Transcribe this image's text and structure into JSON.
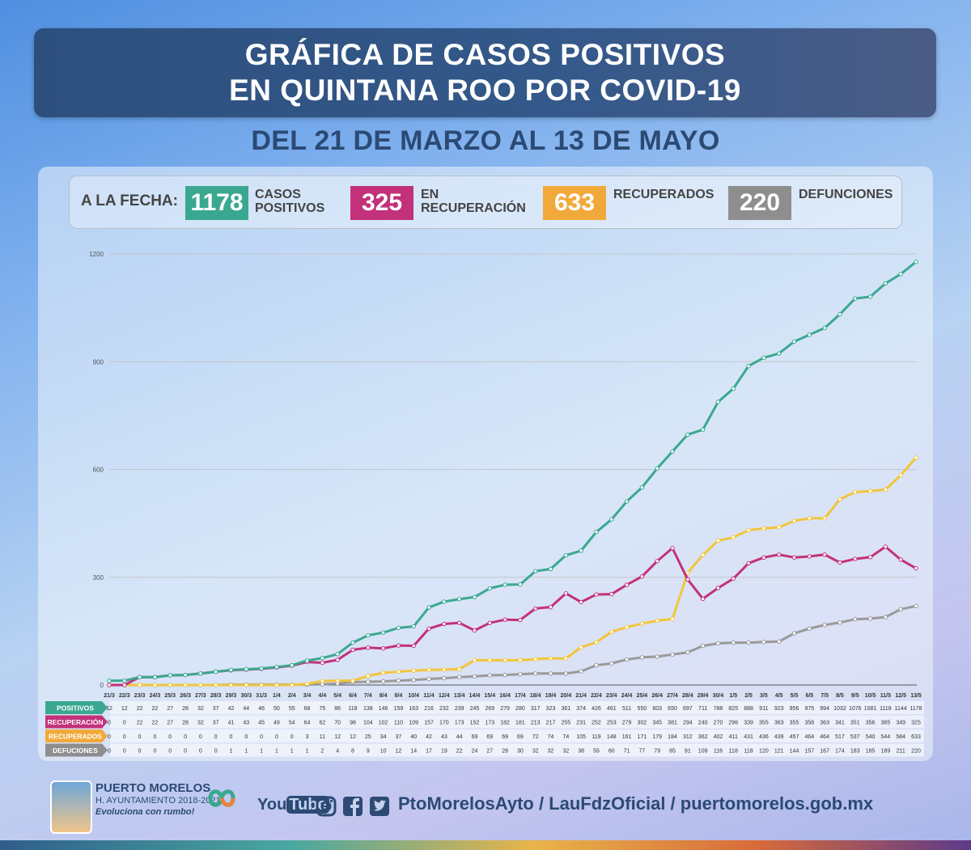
{
  "header": {
    "title_line1": "GRÁFICA DE CASOS POSITIVOS",
    "title_line2": "EN QUINTANA ROO POR COVID-19",
    "subtitle": "DEL 21 DE MARZO AL 13 DE MAYO"
  },
  "summary": {
    "label": "A LA FECHA:",
    "positivos": {
      "value": "1178",
      "label_line1": "CASOS",
      "label_line2": "POSITIVOS",
      "color": "#3aa890"
    },
    "recuperacion": {
      "value": "325",
      "label_line1": "EN",
      "label_line2": "RECUPERACIÓN",
      "color": "#c2317a"
    },
    "recuperados": {
      "value": "633",
      "label_line1": "RECUPERADOS",
      "color": "#f2a93b"
    },
    "defunciones": {
      "value": "220",
      "label_line1": "DEFUNCIONES",
      "color": "#8e8e8e"
    }
  },
  "chart_data": {
    "type": "line",
    "ylim": [
      0,
      1200
    ],
    "yticks": [
      "0",
      "300",
      "600",
      "900",
      "1200"
    ],
    "grid": true,
    "x": [
      "21/3",
      "22/3",
      "23/3",
      "24/3",
      "25/3",
      "26/3",
      "27/3",
      "28/3",
      "29/3",
      "30/3",
      "31/3",
      "1/4",
      "2/4",
      "3/4",
      "4/4",
      "5/4",
      "6/4",
      "7/4",
      "8/4",
      "9/4",
      "10/4",
      "11/4",
      "12/4",
      "13/4",
      "14/4",
      "15/4",
      "16/4",
      "17/4",
      "18/4",
      "19/4",
      "20/4",
      "21/4",
      "22/4",
      "23/4",
      "24/4",
      "25/4",
      "26/4",
      "27/4",
      "28/4",
      "29/4",
      "30/4",
      "1/5",
      "2/5",
      "3/5",
      "4/5",
      "5/5",
      "6/5",
      "7/5",
      "8/5",
      "9/5",
      "10/5",
      "11/5",
      "12/5",
      "13/5"
    ],
    "series": [
      {
        "name": "POSITIVOS",
        "color": "#3aa890",
        "label_bg": "#3aa890",
        "values": [
          12,
          12,
          22,
          22,
          27,
          28,
          32,
          37,
          42,
          44,
          46,
          50,
          55,
          68,
          75,
          86,
          118,
          138,
          146,
          159,
          163,
          216,
          232,
          239,
          245,
          269,
          279,
          280,
          317,
          323,
          361,
          374,
          426,
          461,
          511,
          550,
          603,
          650,
          697,
          711,
          788,
          825,
          888,
          911,
          923,
          956,
          975,
          994,
          1032,
          1076,
          1081,
          1118,
          1144,
          1178
        ]
      },
      {
        "name": "RECUPERACIÓN",
        "color": "#c2317a",
        "label_bg": "#c2317a",
        "values": [
          0,
          0,
          22,
          22,
          27,
          28,
          32,
          37,
          41,
          43,
          45,
          49,
          54,
          64,
          62,
          70,
          98,
          104,
          102,
          110,
          109,
          157,
          170,
          173,
          152,
          173,
          182,
          181,
          213,
          217,
          255,
          231,
          252,
          253,
          279,
          302,
          345,
          381,
          294,
          240,
          270,
          296,
          339,
          355,
          363,
          355,
          358,
          363,
          341,
          351,
          356,
          385,
          349,
          325
        ]
      },
      {
        "name": "RECUPERADOS",
        "color": "#f2c53b",
        "label_bg": "#f2a93b",
        "values": [
          0,
          0,
          0,
          0,
          0,
          0,
          0,
          0,
          0,
          0,
          0,
          0,
          0,
          3,
          11,
          12,
          12,
          25,
          34,
          37,
          40,
          42,
          43,
          44,
          69,
          69,
          69,
          69,
          72,
          74,
          74,
          105,
          119,
          148,
          161,
          171,
          179,
          184,
          312,
          362,
          402,
          411,
          431,
          436,
          439,
          457,
          464,
          464,
          517,
          537,
          540,
          544,
          584,
          633
        ]
      },
      {
        "name": "DEFUCIONES",
        "color": "#9a9a9a",
        "label_bg": "#8e8e8e",
        "values": [
          0,
          0,
          0,
          0,
          0,
          0,
          0,
          0,
          1,
          1,
          1,
          1,
          1,
          1,
          2,
          4,
          8,
          9,
          10,
          12,
          14,
          17,
          19,
          22,
          24,
          27,
          28,
          30,
          32,
          32,
          32,
          38,
          55,
          60,
          71,
          77,
          79,
          85,
          91,
          109,
          116,
          118,
          118,
          120,
          121,
          144,
          157,
          167,
          174,
          183,
          185,
          189,
          211,
          220
        ]
      }
    ]
  },
  "footer": {
    "org_name": "PUERTO MORELOS",
    "org_sub": "H. AYUNTAMIENTO 2018-2021",
    "org_slogan": "Evoluciona con rumbo!",
    "social": "PtoMorelosAyto / LauFdzOficial / puertomorelos.gob.mx",
    "youtube_you": "You",
    "youtube_tube": "Tube"
  }
}
